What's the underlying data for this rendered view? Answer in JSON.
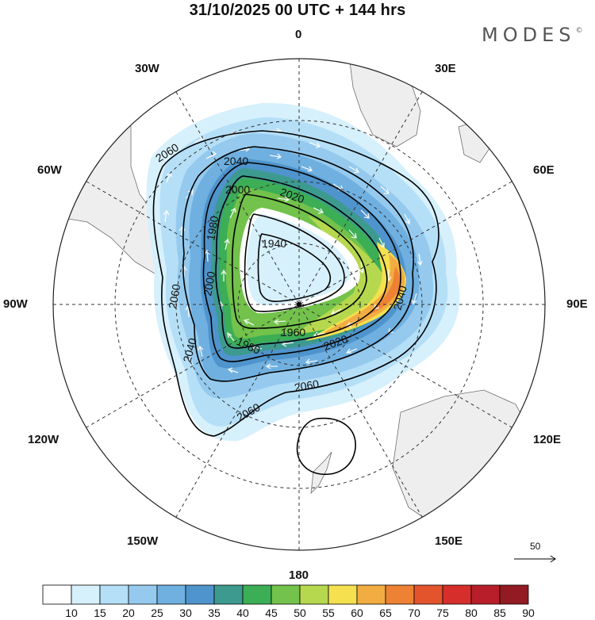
{
  "header": {
    "title": "31/10/2025  00 UTC  + 144 hrs",
    "brand": "MODES"
  },
  "map": {
    "projection": "south-polar-stereographic",
    "longitude_labels": {
      "top": "0",
      "bottom": "180",
      "top_right": "30E",
      "top_left": "30W",
      "upper_right": "60E",
      "upper_left": "60W",
      "right": "90E",
      "left": "90W",
      "lower_right": "120E",
      "lower_left": "120W",
      "bottom_right": "150E",
      "bottom_left": "150W"
    },
    "contour_labels": [
      "2060",
      "2040",
      "2000",
      "2020",
      "1980",
      "1940",
      "2000",
      "2060",
      "1960",
      "1980",
      "2020",
      "2040",
      "2060",
      "2060",
      "2040"
    ],
    "wind_reference": {
      "label": "50"
    }
  },
  "colorbar": {
    "labels": [
      "10",
      "15",
      "20",
      "25",
      "30",
      "35",
      "40",
      "45",
      "50",
      "55",
      "60",
      "65",
      "70",
      "75",
      "80",
      "85",
      "90"
    ],
    "colors": [
      "#ffffff",
      "#d6f0fc",
      "#b5dff7",
      "#95caee",
      "#6fb0e0",
      "#4f94cc",
      "#3d9a8f",
      "#3cae55",
      "#72c24b",
      "#b6d84e",
      "#f5e04f",
      "#f2ad42",
      "#ee8234",
      "#e3542d",
      "#d62f2b",
      "#b81e29",
      "#921a22"
    ]
  },
  "styles": {
    "land": "#eeeeee",
    "coast": "#666666",
    "contour": "#000000",
    "grid": "#333333"
  }
}
